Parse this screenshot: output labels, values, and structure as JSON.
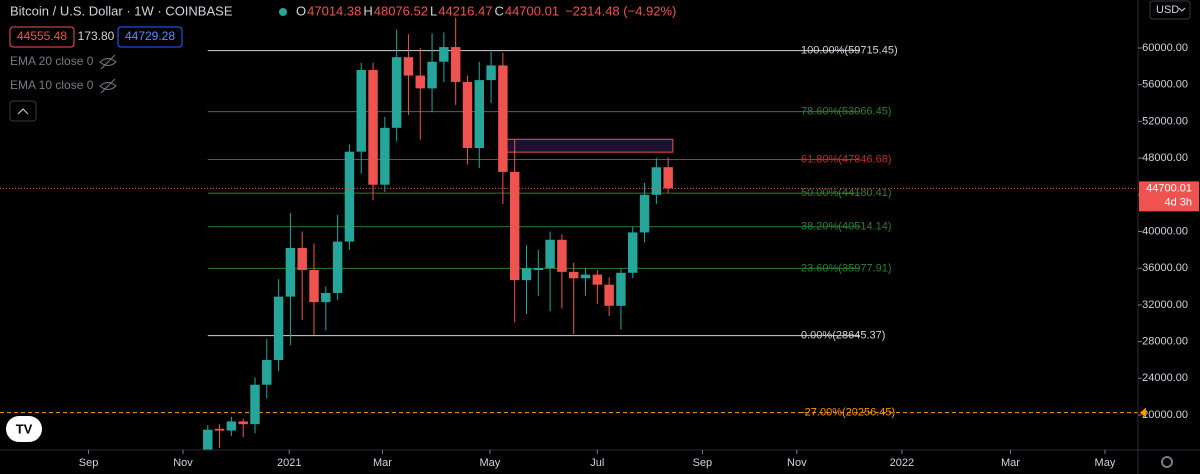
{
  "chart_data": {
    "type": "candlestick",
    "title": "Bitcoin / U.S. Dollar · 1W · COINBASE",
    "legend": {
      "prefixes": [
        "O",
        "H",
        "L",
        "C"
      ],
      "change": "−2314.48 (−4.92%)"
    },
    "quote": {
      "bid": "44555.48",
      "spread": "173.80",
      "ask": "44729.28"
    },
    "indicators": [
      "EMA 20 close 0",
      "EMA 10 close 0"
    ],
    "currency": "USD",
    "countdown": "4d 3h",
    "up_color": "#26a69a",
    "down_color": "#ef5350",
    "categories": [
      null,
      null,
      null,
      null,
      null,
      null,
      null,
      null,
      null,
      null,
      null,
      null,
      null,
      null,
      null,
      null,
      null,
      null,
      null,
      null,
      null,
      null,
      null,
      null,
      null,
      null,
      null,
      null,
      null,
      null,
      null,
      null,
      null,
      null,
      null,
      null,
      null,
      null,
      null,
      null
    ],
    "open": [
      15500,
      18500,
      18300,
      19300,
      19000,
      23300,
      26000,
      32900,
      38200,
      35800,
      32300,
      33300,
      38900,
      48700,
      57600,
      45100,
      51300,
      59000,
      57000,
      55600,
      58500,
      60100,
      56300,
      49100,
      56500,
      58100,
      46500,
      34700,
      35800,
      36000,
      39100,
      35600,
      34900,
      35300,
      34200,
      31900,
      35500,
      39900,
      44000,
      47014.38
    ],
    "high": [
      18900,
      19000,
      19800,
      19600,
      24100,
      28300,
      34800,
      42000,
      40000,
      38700,
      34000,
      41800,
      49500,
      58400,
      58400,
      52500,
      62000,
      61500,
      60000,
      61600,
      61700,
      63300,
      57000,
      58500,
      59600,
      59500,
      50000,
      38500,
      38000,
      40000,
      39700,
      36600,
      36000,
      35800,
      35000,
      36000,
      40500,
      45300,
      48000,
      48076.52
    ],
    "low": [
      14000,
      16400,
      17700,
      17600,
      18000,
      21800,
      24800,
      27600,
      30350,
      28700,
      29200,
      32500,
      38000,
      46300,
      43400,
      44300,
      49800,
      52700,
      50000,
      53000,
      56300,
      53800,
      47300,
      46900,
      54000,
      43000,
      30100,
      31000,
      33000,
      31300,
      31600,
      28800,
      33000,
      32100,
      30800,
      29300,
      34900,
      38800,
      43000,
      44216.47
    ],
    "close": [
      18400,
      18300,
      19300,
      19000,
      23300,
      26000,
      32900,
      38200,
      35800,
      32300,
      33300,
      38900,
      48700,
      57600,
      45100,
      51300,
      59000,
      57000,
      55600,
      58500,
      60100,
      56300,
      49100,
      56500,
      58100,
      46500,
      34700,
      36000,
      36000,
      39100,
      35600,
      34900,
      35300,
      34200,
      31900,
      35500,
      39900,
      44000,
      47000,
      44700.01
    ],
    "fib_levels": [
      {
        "value": 59715.45,
        "label": "100.00%(59715.45)",
        "color": "#d1d4dc"
      },
      {
        "value": 53066.45,
        "label": "78.60%(53066.45)",
        "color": "#2e7d32"
      },
      {
        "value": 47846.68,
        "label": "61.80%(47846.68)",
        "color": "#c62828"
      },
      {
        "value": 44180.41,
        "label": "50.00%(44180.41)",
        "color": "#2e7d32"
      },
      {
        "value": 40514.14,
        "label": "38.20%(40514.14)",
        "color": "#2e7d32"
      },
      {
        "value": 35977.91,
        "label": "23.60%(35977.91)",
        "color": "#2e7d32"
      },
      {
        "value": 28645.37,
        "label": "0.00%(28645.37)",
        "color": "#d1d4dc"
      },
      {
        "value": 20256.45,
        "label": "-27.00%(20256.45)",
        "color": "#ff9800"
      }
    ],
    "zone": [
      48650,
      50050
    ],
    "ylim": [
      16185,
      65232
    ],
    "yticks": [
      {
        "value": 20000,
        "label": "20000.00"
      },
      {
        "value": 24000,
        "label": "24000.00"
      },
      {
        "value": 28000,
        "label": "28000.00"
      },
      {
        "value": 32000,
        "label": "32000.00"
      },
      {
        "value": 36000,
        "label": "36000.00"
      },
      {
        "value": 40000,
        "label": "40000.00"
      },
      {
        "value": 44000,
        "label": "44000.00"
      },
      {
        "value": 48000,
        "label": "48000.00"
      },
      {
        "value": 52000,
        "label": "52000.00"
      },
      {
        "value": 56000,
        "label": "56000.00"
      },
      {
        "value": 60000,
        "label": "60000.00"
      }
    ],
    "xlim": [
      -17.6,
      78.8
    ],
    "xticks": [
      {
        "value": -10.1,
        "label": "Sep"
      },
      {
        "value": -2.1,
        "label": "Nov"
      },
      {
        "value": 6.9,
        "label": "2021"
      },
      {
        "value": 14.8,
        "label": "Mar"
      },
      {
        "value": 23.9,
        "label": "May"
      },
      {
        "value": 33.0,
        "label": "Jul"
      },
      {
        "value": 41.9,
        "label": "Sep"
      },
      {
        "value": 49.9,
        "label": "Nov"
      },
      {
        "value": 58.8,
        "label": "2022"
      },
      {
        "value": 68.0,
        "label": "Mar"
      },
      {
        "value": 76.0,
        "label": "May"
      }
    ]
  }
}
